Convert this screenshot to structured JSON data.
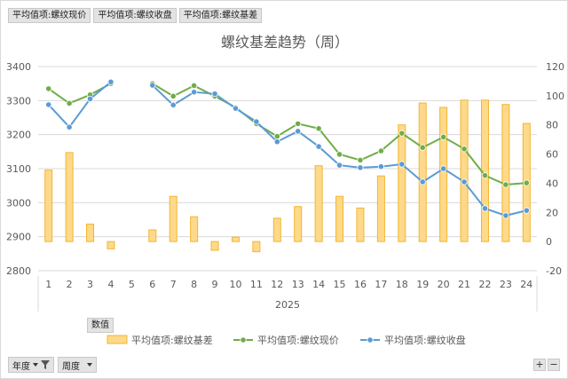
{
  "field_chips": [
    "平均值项:螺纹现价",
    "平均值项:螺纹收盘",
    "平均值项:螺纹基差"
  ],
  "values_chip": "数值",
  "axis_buttons": [
    {
      "label": "年度",
      "icon": "filter-icon"
    },
    {
      "label": "周度",
      "icon": "chevron-down-icon"
    }
  ],
  "zoom_buttons": {
    "plus": "+",
    "minus": "−"
  },
  "colors": {
    "bar_fill": "#FFD98A",
    "bar_stroke": "#F2B530",
    "spot_line": "#70AD47",
    "close_line": "#5B9BD5",
    "grid": "#D9D9D9"
  },
  "chart_data": {
    "type": "bar",
    "title": "螺纹基差趋势（周）",
    "categories": [
      "1",
      "2",
      "3",
      "4",
      "5",
      "6",
      "7",
      "8",
      "9",
      "10",
      "11",
      "12",
      "13",
      "14",
      "15",
      "16",
      "17",
      "18",
      "19",
      "20",
      "21",
      "22",
      "23",
      "24"
    ],
    "x_group_label": "2025",
    "left_axis": {
      "ylim": [
        2800,
        3400
      ],
      "ticks": [
        2800,
        2900,
        3000,
        3100,
        3200,
        3300,
        3400
      ]
    },
    "right_axis": {
      "ylim": [
        -20,
        120
      ],
      "ticks": [
        -20,
        0,
        20,
        40,
        60,
        80,
        100,
        120
      ]
    },
    "grid": true,
    "legend_position": "bottom",
    "series": [
      {
        "name": "平均值项:螺纹基差",
        "type": "bar",
        "axis": "right",
        "values": [
          49,
          61,
          12,
          -5,
          null,
          8,
          31,
          17,
          -6,
          3,
          -7,
          16,
          24,
          52,
          31,
          23,
          45,
          80,
          95,
          92,
          97,
          97,
          94,
          81
        ]
      },
      {
        "name": "平均值项:螺纹现价",
        "type": "line",
        "axis": "left",
        "values": [
          3335,
          3292,
          3317,
          3350,
          null,
          3350,
          3313,
          3344,
          3313,
          3280,
          3232,
          3195,
          3232,
          3218,
          3142,
          3125,
          3152,
          3204,
          3162,
          3193,
          3158,
          3080,
          3053,
          3058
        ]
      },
      {
        "name": "平均值项:螺纹收盘",
        "type": "line",
        "axis": "left",
        "values": [
          3288,
          3222,
          3305,
          3355,
          null,
          3345,
          3287,
          3325,
          3320,
          3277,
          3238,
          3179,
          3210,
          3165,
          3110,
          3103,
          3106,
          3113,
          3061,
          3100,
          3061,
          2983,
          2962,
          2977
        ]
      }
    ]
  }
}
